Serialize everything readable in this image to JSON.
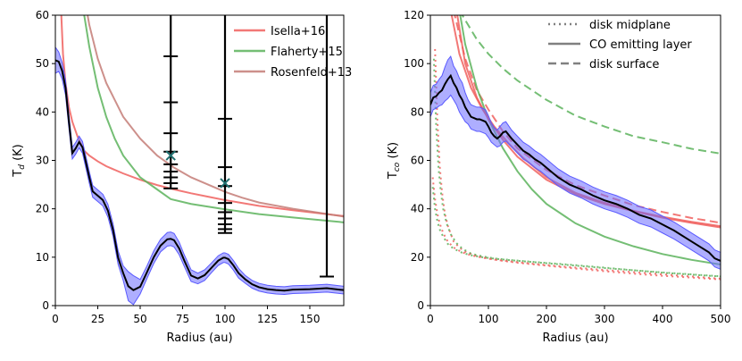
{
  "chart_data": [
    {
      "type": "line",
      "xlabel": "Radius (au)",
      "ylabel_main": "T",
      "ylabel_sub": "d",
      "ylabel_unit": "(K)",
      "xlim": [
        0,
        170
      ],
      "ylim": [
        0,
        60
      ],
      "xticks": [
        0,
        25,
        50,
        75,
        100,
        125,
        150
      ],
      "yticks": [
        0,
        10,
        20,
        30,
        40,
        50,
        60
      ],
      "legend_position": "top-right",
      "legend": [
        {
          "name": "Isella+16",
          "color": "#f0605e"
        },
        {
          "name": "Flaherty+15",
          "color": "#5cb35c"
        },
        {
          "name": "Rosenfeld+13",
          "color": "#c47c77"
        }
      ],
      "model_series": [
        {
          "name": "Isella+16",
          "color": "#f0605e",
          "x": [
            0,
            2.3,
            2.8,
            3.5,
            4.5,
            6,
            8,
            10,
            13,
            17,
            20,
            25,
            30,
            40,
            50,
            60,
            70,
            80,
            90,
            100,
            120,
            140,
            170
          ],
          "y": [
            220,
            75,
            68,
            60,
            52,
            46,
            41,
            38,
            35,
            32,
            31,
            29.8,
            28.8,
            27.3,
            26,
            24.9,
            24,
            23.2,
            22.5,
            21.8,
            20.6,
            19.7,
            18.5
          ]
        },
        {
          "name": "Flaherty+15",
          "color": "#5cb35c",
          "x": [
            0,
            10,
            14,
            17,
            20,
            25,
            30,
            35,
            40,
            50,
            60,
            68,
            80,
            100,
            120,
            140,
            170
          ],
          "y": [
            220,
            88,
            70,
            60,
            53.5,
            45,
            39,
            34.5,
            31,
            26.5,
            24,
            22,
            21,
            19.9,
            18.9,
            18.2,
            17.2
          ]
        },
        {
          "name": "Rosenfeld+13",
          "color": "#c47c77",
          "x": [
            0,
            12,
            15,
            20,
            25,
            30,
            40,
            50,
            60,
            70,
            80,
            90,
            100,
            110,
            120,
            140,
            170
          ],
          "y": [
            220,
            80,
            68,
            58,
            51,
            46,
            39,
            34.5,
            31,
            28.5,
            26.5,
            25,
            23.5,
            22.3,
            21.3,
            20,
            18.4
          ]
        }
      ],
      "fit": {
        "x": [
          0,
          2,
          4,
          6,
          8,
          10,
          12,
          14,
          16,
          18,
          20,
          22,
          25,
          28,
          31,
          34,
          37,
          40,
          43,
          46,
          50,
          54,
          58,
          62,
          66,
          68,
          70,
          73,
          76,
          80,
          84,
          88,
          92,
          96,
          99,
          100,
          102,
          105,
          108,
          112,
          116,
          120,
          125,
          130,
          135,
          140,
          150,
          160,
          170
        ],
        "y": [
          50.7,
          50.4,
          48.5,
          45,
          38,
          31.5,
          32.5,
          33.8,
          32.7,
          29.6,
          26.5,
          23.6,
          22.7,
          21.8,
          19.6,
          15.6,
          9.9,
          6.7,
          4,
          3.2,
          3.9,
          6.9,
          10,
          12.4,
          13.7,
          13.8,
          13.5,
          11.8,
          9.3,
          6.2,
          5.6,
          6.3,
          7.8,
          9.3,
          9.9,
          9.9,
          9.6,
          8.3,
          6.7,
          5.4,
          4.4,
          3.8,
          3.4,
          3.2,
          3.1,
          3.3,
          3.4,
          3.6,
          3.2
        ]
      },
      "band_halfwidth": [
        2.7,
        2,
        1.7,
        1.5,
        1.4,
        1.2,
        1.2,
        1.2,
        1.2,
        1.2,
        1.2,
        1.2,
        1.2,
        1.2,
        1.3,
        1.3,
        1.4,
        1.5,
        3,
        3,
        1.5,
        1.3,
        1.3,
        1.3,
        1.4,
        1.4,
        1.4,
        1.3,
        1.2,
        1.2,
        1.1,
        1.1,
        1,
        1,
        1,
        1,
        1,
        1,
        1,
        0.8,
        0.8,
        0.8,
        0.8,
        0.8,
        0.8,
        0.8,
        0.8,
        0.8,
        0.8
      ],
      "error_bars": [
        {
          "x": 68,
          "top": 60,
          "bottom": 24,
          "ticks": [
            51.5,
            42,
            35.6,
            31.8,
            29.2,
            27.7,
            26.5,
            25.3,
            24.2
          ]
        },
        {
          "x": 100,
          "top": 60,
          "bottom": 15,
          "ticks": [
            38.6,
            28.6,
            24.7,
            21.2,
            19.3,
            18,
            16.8,
            15.8,
            15
          ]
        },
        {
          "x": 160,
          "top": 60,
          "bottom": 6,
          "ticks": [
            6
          ]
        }
      ],
      "markers": [
        {
          "x": 68,
          "y": 31
        },
        {
          "x": 100,
          "y": 25.3
        }
      ]
    },
    {
      "type": "line",
      "xlabel": "Radius (au)",
      "ylabel_main": "T",
      "ylabel_sub": "co",
      "ylabel_unit": "(K)",
      "xlim": [
        0,
        500
      ],
      "ylim": [
        0,
        120
      ],
      "xticks": [
        0,
        100,
        200,
        300,
        400,
        500
      ],
      "yticks": [
        0,
        20,
        40,
        60,
        80,
        100,
        120
      ],
      "legend_position": "top-right",
      "legend": [
        {
          "name": "disk midplane",
          "style": "dotted"
        },
        {
          "name": "CO emitting layer",
          "style": "solid"
        },
        {
          "name": "disk surface",
          "style": "dashed"
        }
      ],
      "model_series": [
        {
          "name": "green dashed",
          "color": "#5cb35c",
          "style": "dashed",
          "x": [
            50,
            60,
            80,
            100,
            125,
            150,
            200,
            250,
            300,
            350,
            400,
            450,
            500
          ],
          "y": [
            122,
            118,
            110,
            104,
            98,
            93,
            85,
            78.5,
            74,
            70,
            67.5,
            64.8,
            62.8
          ]
        },
        {
          "name": "red dashed",
          "color": "#f0605e",
          "style": "dashed",
          "x": [
            40,
            60,
            80,
            100,
            125,
            150,
            200,
            250,
            300,
            350,
            400,
            450,
            500
          ],
          "y": [
            122,
            102,
            89,
            81,
            72,
            65,
            56,
            49.8,
            45.5,
            41.5,
            38.7,
            36.2,
            34.2
          ]
        },
        {
          "name": "green solid",
          "color": "#5cb35c",
          "style": "solid",
          "x": [
            50,
            60,
            80,
            100,
            125,
            150,
            175,
            200,
            250,
            300,
            350,
            400,
            450,
            500
          ],
          "y": [
            122,
            108,
            90,
            77,
            65,
            55.5,
            48,
            42,
            34,
            28.5,
            24.5,
            21.3,
            18.9,
            17
          ]
        },
        {
          "name": "red solid",
          "color": "#f0605e",
          "style": "solid",
          "x": [
            45,
            60,
            80,
            100,
            125,
            150,
            200,
            250,
            300,
            350,
            400,
            450,
            500
          ],
          "y": [
            122,
            100,
            86,
            77,
            68.5,
            61.5,
            52,
            46,
            42,
            39,
            36.3,
            34.2,
            32.3
          ]
        },
        {
          "name": "red solid 2",
          "color": "#f0605e",
          "style": "solid",
          "x": [
            35,
            50,
            70,
            90,
            110,
            135,
            160,
            200,
            250,
            300,
            350,
            400,
            450,
            500
          ],
          "y": [
            122,
            104,
            90,
            81,
            74,
            67,
            61,
            53,
            46.6,
            42.5,
            39.2,
            36.7,
            34.6,
            32.8
          ]
        },
        {
          "name": "red dotted",
          "color": "#f0605e",
          "style": "dotted",
          "x": [
            8,
            12,
            16,
            20,
            25,
            30,
            40,
            50,
            60,
            80,
            100,
            125,
            150,
            200,
            250,
            300,
            350,
            400,
            450,
            500
          ],
          "y": [
            106,
            77,
            58,
            47,
            38,
            33,
            26.5,
            24,
            22.3,
            20.5,
            19.5,
            18.5,
            17.7,
            16.5,
            15.3,
            14.2,
            13.2,
            12.3,
            11.6,
            10.8
          ]
        },
        {
          "name": "green dotted",
          "color": "#5cb35c",
          "style": "dotted",
          "x": [
            6,
            10,
            14,
            18,
            22,
            28,
            35,
            45,
            55,
            70,
            90,
            110,
            140,
            180,
            220,
            260,
            300,
            350,
            400,
            450,
            500
          ],
          "y": [
            102,
            74,
            57,
            47,
            40,
            34,
            29.5,
            25.8,
            23.5,
            21.5,
            20.3,
            19.5,
            18.8,
            18,
            17.3,
            16.5,
            15.7,
            14.6,
            13.6,
            12.8,
            12
          ]
        },
        {
          "name": "red dotted 2",
          "color": "#f0605e",
          "style": "dotted",
          "x": [
            4,
            8,
            12,
            16,
            22,
            30,
            40,
            55,
            70,
            90,
            110,
            140,
            180,
            220,
            260,
            300,
            350,
            400,
            450,
            500
          ],
          "y": [
            53,
            44,
            38,
            34,
            30,
            26.5,
            24,
            22,
            20.8,
            19.8,
            19,
            18.2,
            17.2,
            16.3,
            15.5,
            14.7,
            13.8,
            12.9,
            12,
            11.1
          ]
        },
        {
          "name": "green dotted 2",
          "color": "#5cb35c",
          "style": "dotted",
          "x": [
            4,
            8,
            12,
            16,
            22,
            30,
            40,
            55,
            70,
            90,
            110,
            140,
            180,
            220,
            260,
            300,
            350,
            400,
            450,
            500
          ],
          "y": [
            49,
            40,
            35,
            31.5,
            28.5,
            25.5,
            23.5,
            21.8,
            20.8,
            20,
            19.4,
            18.7,
            17.9,
            17.1,
            16.3,
            15.5,
            14.6,
            13.7,
            12.9,
            12.1
          ]
        }
      ],
      "fit": {
        "x": [
          0,
          5,
          10,
          15,
          20,
          25,
          30,
          35,
          40,
          45,
          50,
          55,
          60,
          65,
          70,
          75,
          80,
          85,
          90,
          95,
          100,
          105,
          110,
          115,
          120,
          125,
          130,
          140,
          150,
          160,
          170,
          180,
          190,
          200,
          220,
          240,
          260,
          280,
          300,
          320,
          340,
          360,
          380,
          400,
          420,
          440,
          460,
          480,
          490,
          500
        ],
        "y": [
          83,
          86,
          86.5,
          88,
          89,
          91.5,
          93.5,
          95,
          92,
          90,
          87,
          85,
          82,
          80,
          78,
          77.5,
          77,
          77,
          76.5,
          76,
          74,
          71.5,
          70,
          69,
          70,
          71.5,
          72,
          69,
          66.5,
          64,
          62.5,
          60.5,
          59,
          57,
          53,
          50,
          48,
          45.5,
          43.5,
          42,
          40,
          37.5,
          36,
          33.5,
          31,
          28,
          25,
          22,
          19.5,
          18.5
        ]
      },
      "band_halfwidth": [
        5,
        5,
        5,
        5.5,
        6,
        7,
        8,
        8,
        7,
        7,
        7,
        7,
        6,
        5,
        5,
        5,
        5,
        5,
        5,
        5,
        4.5,
        4,
        3.5,
        3.5,
        4,
        4,
        4,
        3.5,
        3.5,
        3.5,
        3.5,
        3.5,
        3.5,
        3.5,
        3.5,
        3.5,
        3.5,
        3.5,
        3.5,
        3.5,
        3.5,
        3.5,
        3.5,
        3.5,
        3.5,
        3.5,
        3.5,
        3.5,
        3.5,
        3.5
      ]
    }
  ]
}
